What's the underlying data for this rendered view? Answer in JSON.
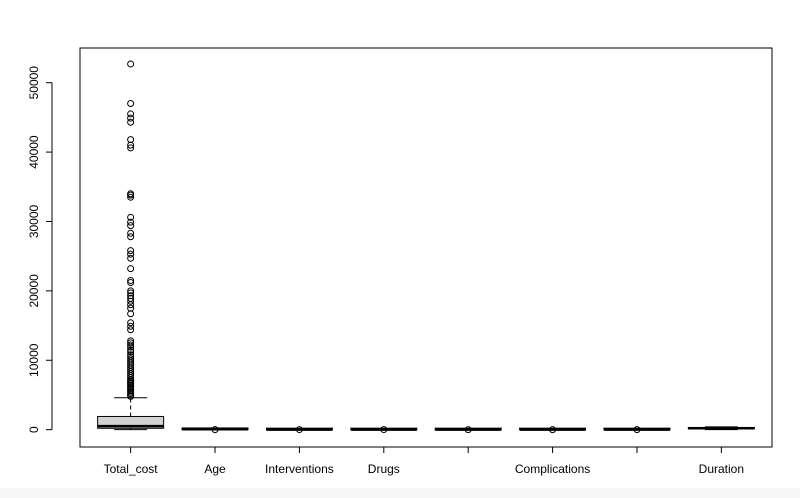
{
  "chart_data": {
    "type": "boxplot",
    "title": "",
    "xlabel": "",
    "ylabel": "",
    "ylim": [
      -2500,
      55000
    ],
    "y_ticks": [
      0,
      10000,
      20000,
      30000,
      40000,
      50000
    ],
    "y_tick_labels": [
      "0",
      "10000",
      "20000",
      "30000",
      "40000",
      "50000"
    ],
    "grid": false,
    "box_color": "#d3d3d3",
    "categories": [
      "Total_cost",
      "Age",
      "Interventions",
      "Drugs",
      "",
      "Complications",
      "",
      "Duration"
    ],
    "boxes": [
      {
        "name": "Total_cost",
        "min": 0,
        "q1": 200,
        "median": 500,
        "q3": 1900,
        "max": 4600,
        "outliers": [
          52700,
          47000,
          45500,
          44900,
          44300,
          41800,
          41000,
          40600,
          34000,
          33800,
          33500,
          30600,
          29900,
          29400,
          28300,
          27800,
          25800,
          25300,
          24700,
          23200,
          21500,
          21200,
          20000,
          19700,
          19300,
          18900,
          18500,
          18000,
          17500,
          16700,
          15400,
          14900,
          14400,
          12800,
          12500,
          12200,
          11900,
          11500,
          11200,
          10800,
          10500,
          10200,
          9900,
          9600,
          9300,
          9000,
          8700,
          8400,
          8100,
          7800,
          7500,
          7200,
          7000,
          6800,
          6600,
          6400,
          6200,
          6000,
          5800,
          5600,
          5400,
          5200,
          5000,
          4800
        ]
      },
      {
        "name": "Age",
        "min": 0,
        "q1": 30,
        "median": 60,
        "q3": 80,
        "max": 100,
        "outliers": [
          0
        ]
      },
      {
        "name": "Interventions",
        "min": 0,
        "q1": 0,
        "median": 1,
        "q3": 2,
        "max": 5,
        "outliers": [
          10
        ]
      },
      {
        "name": "Drugs",
        "min": 0,
        "q1": 0,
        "median": 1,
        "q3": 2,
        "max": 5,
        "outliers": [
          10
        ]
      },
      {
        "name": "",
        "min": 0,
        "q1": 0,
        "median": 0,
        "q3": 1,
        "max": 2,
        "outliers": [
          5
        ]
      },
      {
        "name": "Complications",
        "min": 0,
        "q1": 0,
        "median": 0,
        "q3": 1,
        "max": 2,
        "outliers": [
          4
        ]
      },
      {
        "name": "",
        "min": 0,
        "q1": 0,
        "median": 1,
        "q3": 2,
        "max": 4,
        "outliers": [
          8
        ]
      },
      {
        "name": "Duration",
        "min": 0,
        "q1": 100,
        "median": 200,
        "q3": 300,
        "max": 400,
        "outliers": []
      }
    ]
  }
}
